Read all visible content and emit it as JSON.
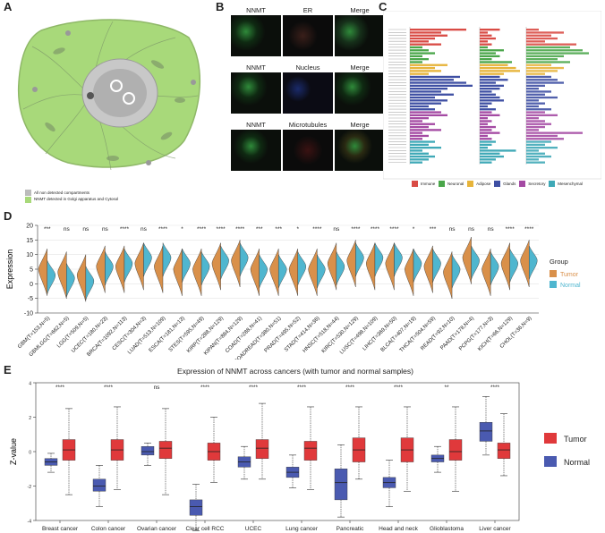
{
  "panels": {
    "a": "A",
    "b": "B",
    "c": "C",
    "d": "D",
    "e": "E"
  },
  "panelA": {
    "legend": [
      {
        "label": "All non detected compartments",
        "color": "#bcbcbc"
      },
      {
        "label": "NNMT detected in Golgi apparatus and Cytosol",
        "color": "#a8d97a"
      }
    ]
  },
  "panelB": {
    "rows": [
      {
        "labels": [
          "NNMT",
          "ER",
          "Merge"
        ]
      },
      {
        "labels": [
          "NNMT",
          "Nucleus",
          "Merge"
        ]
      },
      {
        "labels": [
          "NNMT",
          "Microtubules",
          "Merge"
        ]
      }
    ]
  },
  "panelC": {
    "legend": [
      "Immune",
      "Neuronal",
      "Adipose",
      "Glands",
      "Secretory",
      "Mesenchymal"
    ],
    "legend_colors": [
      "#d94b45",
      "#4aa64a",
      "#e7b43a",
      "#3e4fa3",
      "#a44aa3",
      "#3fa9b7"
    ]
  },
  "chart_data": [
    {
      "type": "violin",
      "panel": "D",
      "ylabel": "Expression",
      "ylim": [
        -10,
        20
      ],
      "yticks": [
        -10,
        -5,
        0,
        5,
        10,
        15,
        20
      ],
      "legend_title": "Group",
      "series": [
        {
          "name": "Tumor",
          "color": "#d9904a"
        },
        {
          "name": "Normal",
          "color": "#4fb6cf"
        }
      ],
      "categories": [
        "GBM(T=153,N=5)",
        "GBMLGG(T=662,N=5)",
        "LGG(T=509,N=5)",
        "UCEC(T=180,N=23)",
        "BRCA(T=1092,N=113)",
        "CESC(T=304,N=3)",
        "LUAD(T=513,N=109)",
        "ESCA(T=181,N=13)",
        "STES(T=595,N=49)",
        "KIRP(T=288,N=129)",
        "KIPAN(T=884,N=129)",
        "COAD(T=288,N=41)",
        "COADREAD(T=380,N=51)",
        "PRAD(T=495,N=52)",
        "STAD(T=414,N=36)",
        "HNSC(T=518,N=44)",
        "KIRC(T=530,N=129)",
        "LUSC(T=498,N=109)",
        "LIHC(T=369,N=50)",
        "BLCA(T=407,N=19)",
        "THCA(T=504,N=59)",
        "READ(T=92,N=10)",
        "PAAD(T=178,N=4)",
        "PCPG(T=177,N=3)",
        "KICH(T=66,N=129)",
        "CHOL(T=36,N=9)"
      ],
      "significance": [
        "***",
        "ns",
        "ns",
        "ns",
        "****",
        "ns",
        "****",
        "*",
        "****",
        "****",
        "****",
        "***",
        "***",
        "*",
        "****",
        "ns",
        "****",
        "****",
        "****",
        "*",
        "***",
        "ns",
        "ns",
        "ns",
        "****",
        "****"
      ],
      "tumor_center": [
        5,
        4,
        3,
        6,
        6,
        7,
        6,
        5,
        5,
        7,
        8,
        5,
        5,
        5,
        5,
        7,
        8,
        7,
        7,
        5,
        6,
        4,
        9,
        5,
        7,
        8
      ],
      "normal_center": [
        3,
        2,
        1,
        6,
        7,
        9,
        9,
        7,
        6,
        8,
        9,
        5,
        5,
        6,
        5,
        6,
        9,
        9,
        9,
        7,
        7,
        5,
        8,
        6,
        7,
        8
      ]
    },
    {
      "type": "box",
      "panel": "E",
      "title": "Expression of NNMT across cancers (with tumor and normal samples)",
      "ylabel": "Z-value",
      "ylim": [
        -4,
        4
      ],
      "yticks": [
        -4,
        -2,
        0,
        2,
        4
      ],
      "series": [
        {
          "name": "Tumor",
          "color": "#e0393b"
        },
        {
          "name": "Normal",
          "color": "#4a5ab0"
        }
      ],
      "categories": [
        "Breast cancer",
        "Colon cancer",
        "Ovarian cancer",
        "Clear cell RCC",
        "UCEC",
        "Lung cancer",
        "Pancreatic",
        "Head and neck",
        "Glioblastoma",
        "Liver cancer"
      ],
      "significance": [
        "****",
        "****",
        "ns",
        "****",
        "****",
        "****",
        "****",
        "****",
        "**",
        "****"
      ],
      "tumor": [
        {
          "q1": -0.5,
          "med": 0.1,
          "q3": 0.7,
          "lo": -2.5,
          "hi": 2.5
        },
        {
          "q1": -0.5,
          "med": 0.1,
          "q3": 0.7,
          "lo": -2.2,
          "hi": 2.6
        },
        {
          "q1": -0.4,
          "med": 0.2,
          "q3": 0.6,
          "lo": -2.5,
          "hi": 2.5
        },
        {
          "q1": -0.5,
          "med": 0.0,
          "q3": 0.5,
          "lo": -1.8,
          "hi": 2.0
        },
        {
          "q1": -0.4,
          "med": 0.2,
          "q3": 0.7,
          "lo": -1.6,
          "hi": 2.8
        },
        {
          "q1": -0.5,
          "med": 0.2,
          "q3": 0.6,
          "lo": -2.2,
          "hi": 2.6
        },
        {
          "q1": -0.6,
          "med": 0.1,
          "q3": 0.8,
          "lo": -1.6,
          "hi": 2.6
        },
        {
          "q1": -0.6,
          "med": 0.1,
          "q3": 0.8,
          "lo": -2.3,
          "hi": 2.6
        },
        {
          "q1": -0.5,
          "med": 0.0,
          "q3": 0.7,
          "lo": -2.3,
          "hi": 2.6
        },
        {
          "q1": -0.4,
          "med": 0.1,
          "q3": 0.5,
          "lo": -1.4,
          "hi": 2.2
        }
      ],
      "normal": [
        {
          "q1": -0.8,
          "med": -0.6,
          "q3": -0.4,
          "lo": -1.2,
          "hi": -0.1
        },
        {
          "q1": -2.3,
          "med": -2.0,
          "q3": -1.6,
          "lo": -3.2,
          "hi": -0.8
        },
        {
          "q1": -0.2,
          "med": 0.0,
          "q3": 0.3,
          "lo": -0.8,
          "hi": 0.5
        },
        {
          "q1": -3.7,
          "med": -3.2,
          "q3": -2.8,
          "lo": -4.6,
          "hi": -1.9
        },
        {
          "q1": -0.9,
          "med": -0.6,
          "q3": -0.3,
          "lo": -1.6,
          "hi": 0.3
        },
        {
          "q1": -1.5,
          "med": -1.2,
          "q3": -0.9,
          "lo": -2.1,
          "hi": -0.2
        },
        {
          "q1": -2.8,
          "med": -1.8,
          "q3": -1.0,
          "lo": -3.8,
          "hi": 0.4
        },
        {
          "q1": -2.1,
          "med": -1.8,
          "q3": -1.5,
          "lo": -3.2,
          "hi": -0.5
        },
        {
          "q1": -0.6,
          "med": -0.4,
          "q3": -0.2,
          "lo": -1.2,
          "hi": 0.3
        },
        {
          "q1": 0.6,
          "med": 1.2,
          "q3": 1.7,
          "lo": -0.2,
          "hi": 3.2
        }
      ]
    }
  ]
}
